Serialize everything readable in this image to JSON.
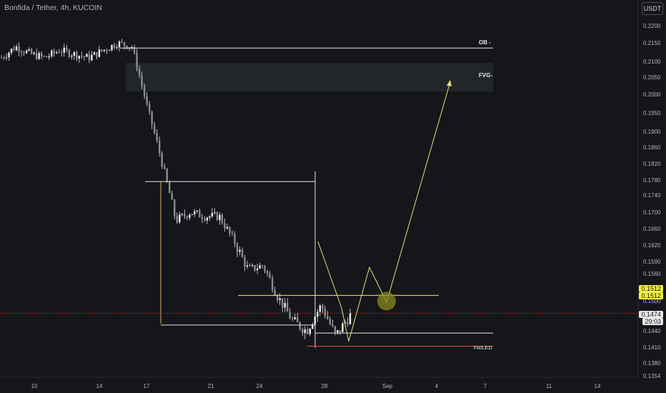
{
  "header": {
    "title": "Bonfida / Tether, 4h, KUCOIN",
    "currency": "USDT"
  },
  "annotations": {
    "ob": "OB -",
    "fvg": "FVG-",
    "failed": "FAILED"
  },
  "price_tags": {
    "level_a": "0.1512",
    "level_b": "0.1512",
    "current": "0.1474",
    "countdown": "29:03"
  },
  "colors": {
    "background": "#151619",
    "candle": "#e0e0e0",
    "projection": "#e0e080",
    "hline": "#f0e68c",
    "failed_line": "#e05050",
    "dashed": "#d04040"
  },
  "chart_data": {
    "type": "candlestick",
    "title": "Bonfida / Tether, 4h, KUCOIN",
    "y_ticks": [
      "0.2200",
      "0.2150",
      "0.2100",
      "0.2050",
      "0.2000",
      "0.1950",
      "0.1900",
      "0.1860",
      "0.1820",
      "0.1780",
      "0.1740",
      "0.1700",
      "0.1660",
      "0.1620",
      "0.1590",
      "0.1560",
      "0.1530",
      "0.1500",
      "0.1470",
      "0.1440",
      "0.1410",
      "0.1380",
      "0.1354"
    ],
    "x_ticks": [
      "10",
      "14",
      "17",
      "21",
      "24",
      "28",
      "Sep",
      "4",
      "7",
      "11",
      "14"
    ],
    "current_price": 0.1474,
    "levels": {
      "ob": 0.2136,
      "fvg_top": 0.2085,
      "fvg_bottom": 0.2008,
      "key_level": 0.1512,
      "range_top": 0.1776,
      "range_bottom": 0.1451,
      "mid_support": 0.1436,
      "failed": 0.1412
    },
    "projection_path": [
      [
        "29",
        0.1421
      ],
      [
        "31",
        0.1576
      ],
      [
        "Sep",
        0.1497
      ],
      [
        "5",
        0.2036
      ]
    ],
    "close_series": [
      [
        "Aug 6",
        0.211
      ],
      [
        "Aug 7",
        0.214
      ],
      [
        "Aug 8",
        0.212
      ],
      [
        "Aug 9",
        0.211
      ],
      [
        "Aug 10",
        0.213
      ],
      [
        "Aug 11",
        0.212
      ],
      [
        "Aug 12",
        0.211
      ],
      [
        "Aug 13",
        0.213
      ],
      [
        "Aug 14",
        0.215
      ],
      [
        "Aug 15",
        0.214
      ],
      [
        "Aug 16",
        0.197
      ],
      [
        "Aug 17",
        0.183
      ],
      [
        "Aug 18",
        0.168
      ],
      [
        "Aug 19",
        0.17
      ],
      [
        "Aug 20",
        0.169
      ],
      [
        "Aug 21",
        0.169
      ],
      [
        "Aug 22",
        0.163
      ],
      [
        "Aug 23",
        0.157
      ],
      [
        "Aug 24",
        0.158
      ],
      [
        "Aug 25",
        0.151
      ],
      [
        "Aug 26",
        0.146
      ],
      [
        "Aug 27",
        0.144
      ],
      [
        "Aug 28",
        0.149
      ],
      [
        "Aug 29",
        0.143
      ],
      [
        "Aug 30",
        0.147
      ]
    ]
  }
}
